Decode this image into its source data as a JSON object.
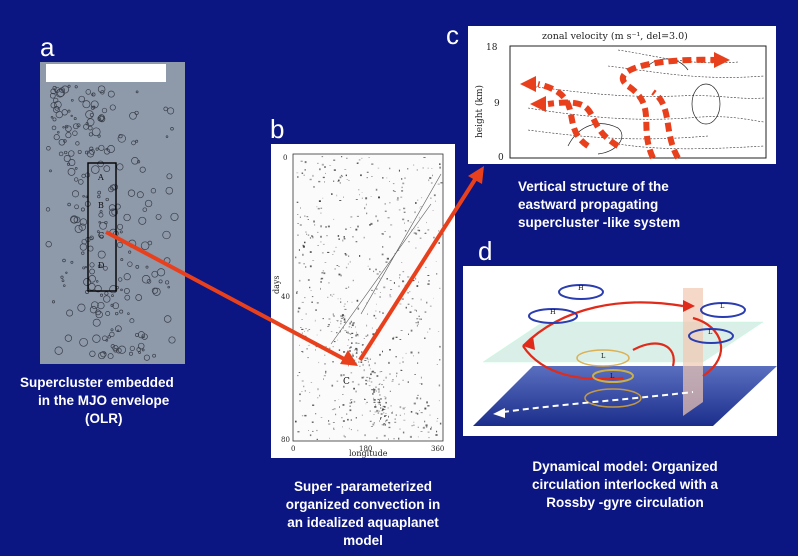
{
  "panels": {
    "a": {
      "letter": "a",
      "caption": [
        "Supercluster embedded",
        "in the MJO envelope",
        "(OLR)"
      ],
      "box_labels": [
        "A",
        "B",
        "C",
        "D"
      ]
    },
    "b": {
      "letter": "b",
      "caption": [
        "Super -parameterized",
        "organized convection in",
        "an idealized aquaplanet",
        "model"
      ],
      "ylabel": "days",
      "xlabel": "longitude",
      "yticks": [
        "0",
        "40",
        "80"
      ],
      "xticks": [
        "0",
        "180",
        "360"
      ],
      "mark_label": "C"
    },
    "c": {
      "letter": "c",
      "caption": [
        "Vertical structure of the",
        "eastward propagating",
        "supercluster -like system"
      ],
      "title": "zonal velocity  (m s⁻¹, del=3.0)",
      "ylabel": "height (km)",
      "yticks": [
        "18",
        "9",
        "0"
      ]
    },
    "d": {
      "letter": "d",
      "caption": [
        "Dynamical model: Organized",
        "circulation interlocked with a",
        "Rossby -gyre circulation"
      ],
      "gyre_labels": [
        "H",
        "H",
        "L",
        "L",
        "L",
        "L"
      ]
    }
  },
  "colors": {
    "background": "#0b1682",
    "arrow": "#e8401c",
    "text": "#ffffff"
  }
}
